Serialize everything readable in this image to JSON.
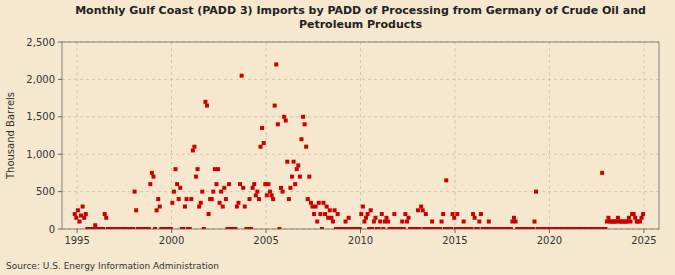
{
  "chart_data": {
    "type": "scatter",
    "title": "Monthly Gulf Coast (PADD 3) Imports by PADD of Processing from Germany of Crude Oil and\nPetroleum Products",
    "y_label": "Thousand Barrels",
    "annotations": [
      "Source: U.S. Energy Information Administration"
    ],
    "color": "#cc0000",
    "marker": "square",
    "grid": true,
    "xlim": [
      1994.2,
      2025.8
    ],
    "xticks": [
      1995,
      2000,
      2005,
      2010,
      2015,
      2020,
      2025
    ],
    "ylim": [
      0,
      2500
    ],
    "yticks": [
      0,
      500,
      {
        "value": 1000,
        "label": "1,000"
      },
      {
        "value": 1500,
        "label": "1,500"
      },
      {
        "value": 2000,
        "label": "2,000"
      },
      {
        "value": 2500,
        "label": "2,500"
      }
    ],
    "x": [
      1994.875,
      1994.9583,
      1995.0417,
      1995.125,
      1995.2083,
      1995.2917,
      1995.375,
      1995.4583,
      1995.5417,
      1995.625,
      1995.7083,
      1995.7917,
      1995.875,
      1995.9583,
      1996.0417,
      1996.125,
      1996.2083,
      1996.2917,
      1996.375,
      1996.4583,
      1996.5417,
      1996.625,
      1996.7083,
      1996.7917,
      1996.875,
      1996.9583,
      1997.0417,
      1997.125,
      1997.2083,
      1997.2917,
      1997.375,
      1997.4583,
      1997.5417,
      1997.625,
      1997.7083,
      1997.7917,
      1997.875,
      1997.9583,
      1998.0417,
      1998.125,
      1998.2083,
      1998.2917,
      1998.375,
      1998.4583,
      1998.5417,
      1998.625,
      1998.7083,
      1998.7917,
      1998.875,
      1998.9583,
      1999.0417,
      1999.125,
      1999.2083,
      1999.2917,
      1999.375,
      1999.4583,
      1999.5417,
      1999.625,
      1999.7083,
      1999.7917,
      1999.875,
      1999.9583,
      2000.0417,
      2000.125,
      2000.2083,
      2000.2917,
      2000.375,
      2000.4583,
      2000.5417,
      2000.625,
      2000.7083,
      2000.7917,
      2000.875,
      2000.9583,
      2001.0417,
      2001.125,
      2001.2083,
      2001.2917,
      2001.375,
      2001.4583,
      2001.5417,
      2001.625,
      2001.7083,
      2001.7917,
      2001.875,
      2001.9583,
      2002.0417,
      2002.125,
      2002.2083,
      2002.2917,
      2002.375,
      2002.4583,
      2002.5417,
      2002.625,
      2002.7083,
      2002.7917,
      2002.875,
      2002.9583,
      2003.0417,
      2003.125,
      2003.2083,
      2003.2917,
      2003.375,
      2003.4583,
      2003.5417,
      2003.625,
      2003.7083,
      2003.7917,
      2003.875,
      2003.9583,
      2004.0417,
      2004.125,
      2004.2083,
      2004.2917,
      2004.375,
      2004.4583,
      2004.5417,
      2004.625,
      2004.7083,
      2004.7917,
      2004.875,
      2004.9583,
      2005.0417,
      2005.125,
      2005.2083,
      2005.2917,
      2005.375,
      2005.4583,
      2005.5417,
      2005.625,
      2005.7083,
      2005.7917,
      2005.875,
      2005.9583,
      2006.0417,
      2006.125,
      2006.2083,
      2006.2917,
      2006.375,
      2006.4583,
      2006.5417,
      2006.625,
      2006.7083,
      2006.7917,
      2006.875,
      2006.9583,
      2007.0417,
      2007.125,
      2007.2083,
      2007.2917,
      2007.375,
      2007.4583,
      2007.5417,
      2007.625,
      2007.7083,
      2007.7917,
      2007.875,
      2007.9583,
      2008.0417,
      2008.125,
      2008.2083,
      2008.2917,
      2008.375,
      2008.4583,
      2008.5417,
      2008.625,
      2008.7083,
      2008.7917,
      2008.875,
      2008.9583,
      2009.0417,
      2009.125,
      2009.2083,
      2009.2917,
      2009.375,
      2009.4583,
      2009.5417,
      2009.625,
      2009.7083,
      2009.7917,
      2009.875,
      2009.9583,
      2010.0417,
      2010.125,
      2010.2083,
      2010.2917,
      2010.375,
      2010.4583,
      2010.5417,
      2010.625,
      2010.7083,
      2010.7917,
      2010.875,
      2010.9583,
      2011.0417,
      2011.125,
      2011.2083,
      2011.2917,
      2011.375,
      2011.4583,
      2011.5417,
      2011.625,
      2011.7083,
      2011.7917,
      2011.875,
      2011.9583,
      2012.0417,
      2012.125,
      2012.2083,
      2012.2917,
      2012.375,
      2012.4583,
      2012.5417,
      2012.625,
      2012.7083,
      2012.7917,
      2012.875,
      2012.9583,
      2013.0417,
      2013.125,
      2013.2083,
      2013.2917,
      2013.375,
      2013.4583,
      2013.5417,
      2013.625,
      2013.7083,
      2013.7917,
      2013.875,
      2013.9583,
      2014.0417,
      2014.125,
      2014.2083,
      2014.2917,
      2014.375,
      2014.4583,
      2014.5417,
      2014.625,
      2014.7083,
      2014.7917,
      2014.875,
      2014.9583,
      2015.0417,
      2015.125,
      2015.2083,
      2015.2917,
      2015.375,
      2015.4583,
      2015.5417,
      2015.625,
      2015.7083,
      2015.7917,
      2015.875,
      2015.9583,
      2016.0417,
      2016.125,
      2016.2083,
      2016.2917,
      2016.375,
      2016.4583,
      2016.5417,
      2016.625,
      2016.7083,
      2016.7917,
      2016.875,
      2016.9583,
      2017.0417,
      2017.125,
      2017.2083,
      2017.2917,
      2017.375,
      2017.4583,
      2017.5417,
      2017.625,
      2017.7083,
      2017.7917,
      2017.875,
      2017.9583,
      2018.0417,
      2018.125,
      2018.2083,
      2018.2917,
      2018.375,
      2018.4583,
      2018.5417,
      2018.625,
      2018.7083,
      2018.7917,
      2018.875,
      2018.9583,
      2019.0417,
      2019.125,
      2019.2083,
      2019.2917,
      2019.375,
      2019.4583,
      2019.5417,
      2019.625,
      2019.7083,
      2019.7917,
      2019.875,
      2019.9583,
      2020.0417,
      2020.125,
      2020.2083,
      2020.2917,
      2020.375,
      2020.4583,
      2020.5417,
      2020.625,
      2020.7083,
      2020.7917,
      2020.875,
      2020.9583,
      2021.0417,
      2021.125,
      2021.2083,
      2021.2917,
      2021.375,
      2021.4583,
      2021.5417,
      2021.625,
      2021.7083,
      2021.7917,
      2021.875,
      2021.9583,
      2022.0417,
      2022.125,
      2022.2083,
      2022.2917,
      2022.375,
      2022.4583,
      2022.5417,
      2022.625,
      2022.7083,
      2022.7917,
      2022.875,
      2022.9583,
      2023.0417,
      2023.125,
      2023.2083,
      2023.2917,
      2023.375,
      2023.4583,
      2023.5417,
      2023.625,
      2023.7083,
      2023.7917,
      2023.875,
      2023.9583,
      2024.0417,
      2024.125,
      2024.2083,
      2024.2917,
      2024.375,
      2024.4583,
      2024.5417,
      2024.625,
      2024.7083,
      2024.7917,
      2024.875,
      2024.9583
    ],
    "values": [
      200,
      150,
      250,
      100,
      180,
      300,
      150,
      200,
      0,
      0,
      0,
      0,
      0,
      50,
      0,
      0,
      0,
      0,
      0,
      200,
      150,
      0,
      0,
      0,
      0,
      0,
      0,
      0,
      0,
      0,
      0,
      0,
      0,
      0,
      0,
      0,
      0,
      0,
      500,
      250,
      0,
      0,
      0,
      0,
      0,
      0,
      0,
      0,
      600,
      750,
      700,
      0,
      250,
      400,
      300,
      0,
      0,
      0,
      0,
      0,
      0,
      0,
      350,
      500,
      800,
      600,
      400,
      550,
      0,
      0,
      300,
      400,
      0,
      0,
      400,
      1050,
      1100,
      700,
      800,
      300,
      350,
      500,
      0,
      1700,
      1650,
      200,
      400,
      400,
      500,
      800,
      600,
      800,
      350,
      500,
      300,
      550,
      400,
      0,
      600,
      0,
      0,
      0,
      0,
      300,
      350,
      600,
      2050,
      550,
      300,
      0,
      0,
      400,
      0,
      550,
      600,
      450,
      500,
      400,
      1100,
      1350,
      1150,
      600,
      450,
      600,
      500,
      450,
      400,
      1650,
      2200,
      1400,
      0,
      550,
      500,
      1500,
      1450,
      900,
      400,
      550,
      700,
      900,
      600,
      800,
      850,
      700,
      1200,
      1500,
      1400,
      1100,
      400,
      700,
      350,
      300,
      200,
      300,
      100,
      350,
      200,
      0,
      350,
      200,
      300,
      150,
      250,
      150,
      100,
      250,
      0,
      200,
      0,
      0,
      0,
      0,
      100,
      0,
      150,
      0,
      0,
      0,
      0,
      0,
      0,
      0,
      200,
      300,
      100,
      150,
      200,
      0,
      250,
      0,
      100,
      150,
      0,
      0,
      100,
      200,
      0,
      100,
      150,
      100,
      0,
      0,
      0,
      200,
      0,
      0,
      0,
      0,
      100,
      0,
      200,
      100,
      150,
      0,
      0,
      0,
      0,
      0,
      250,
      0,
      300,
      250,
      0,
      200,
      0,
      0,
      0,
      100,
      0,
      0,
      0,
      0,
      0,
      100,
      200,
      0,
      650,
      0,
      0,
      0,
      200,
      150,
      0,
      200,
      0,
      0,
      0,
      100,
      0,
      0,
      0,
      0,
      0,
      200,
      150,
      0,
      0,
      100,
      200,
      0,
      0,
      0,
      0,
      100,
      0,
      0,
      0,
      0,
      0,
      0,
      0,
      0,
      0,
      0,
      0,
      0,
      0,
      0,
      100,
      150,
      100,
      0,
      0,
      0,
      0,
      0,
      0,
      0,
      0,
      0,
      0,
      0,
      100,
      500,
      0,
      0,
      0,
      0,
      0,
      0,
      0,
      0,
      0,
      0,
      0,
      0,
      0,
      0,
      0,
      0,
      0,
      0,
      0,
      0,
      0,
      0,
      0,
      0,
      0,
      0,
      0,
      0,
      0,
      0,
      0,
      0,
      0,
      0,
      0,
      0,
      0,
      0,
      0,
      0,
      0,
      750,
      0,
      0,
      100,
      150,
      100,
      100,
      100,
      100,
      100,
      150,
      100,
      100,
      100,
      100,
      100,
      100,
      150,
      100,
      200,
      200,
      150,
      100,
      100,
      100,
      150,
      200
    ]
  }
}
